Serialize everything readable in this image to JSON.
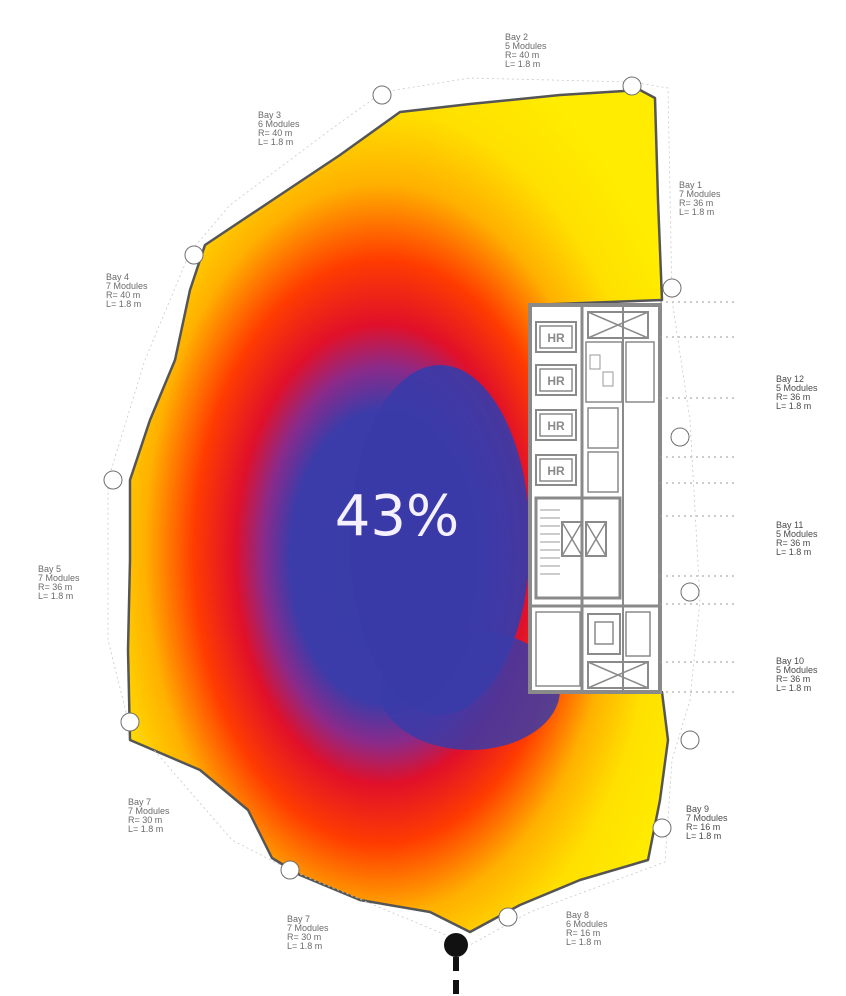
{
  "metric": {
    "value_text": "43%"
  },
  "bays": [
    {
      "id": "bay-2",
      "lines": [
        "Bay 2",
        "5 Modules",
        "R= 40 m",
        "L= 1.8 m"
      ]
    },
    {
      "id": "bay-3",
      "lines": [
        "Bay 3",
        "6 Modules",
        "R= 40 m",
        "L= 1.8 m"
      ]
    },
    {
      "id": "bay-1",
      "lines": [
        "Bay 1",
        "7 Modules",
        "R= 36 m",
        "L= 1.8 m"
      ]
    },
    {
      "id": "bay-4",
      "lines": [
        "Bay 4",
        "7 Modules",
        "R= 40 m",
        "L= 1.8 m"
      ]
    },
    {
      "id": "bay-12",
      "lines": [
        "Bay 12",
        "5 Modules",
        "R= 36 m",
        "L= 1.8 m"
      ]
    },
    {
      "id": "bay-11",
      "lines": [
        "Bay 11",
        "5 Modules",
        "R= 36 m",
        "L= 1.8 m"
      ]
    },
    {
      "id": "bay-5",
      "lines": [
        "Bay 5",
        "7 Modules",
        "R= 36 m",
        "L= 1.8 m"
      ]
    },
    {
      "id": "bay-10",
      "lines": [
        "Bay 10",
        "5 Modules",
        "R= 36 m",
        "L= 1.8 m"
      ]
    },
    {
      "id": "bay-9",
      "lines": [
        "Bay 9",
        "7 Modules",
        "R= 16 m",
        "L= 1.8 m"
      ]
    },
    {
      "id": "bay-7a",
      "lines": [
        "Bay 7",
        "7 Modules",
        "R= 30 m",
        "L= 1.8 m"
      ]
    },
    {
      "id": "bay-7b",
      "lines": [
        "Bay 7",
        "7 Modules",
        "R= 30 m",
        "L= 1.8 m"
      ]
    },
    {
      "id": "bay-8",
      "lines": [
        "Bay 8",
        "6 Modules",
        "R= 16 m",
        "L= 1.8 m"
      ]
    }
  ],
  "core": {
    "rooms": [
      "HR",
      "HR",
      "HR",
      "HR"
    ]
  },
  "colors": {
    "outer": "#ffec00",
    "mid": "#ffb000",
    "warm": "#ff3c00",
    "hot": "#e0102a",
    "core_blue": "#3a3ba8",
    "outline": "#555555"
  }
}
